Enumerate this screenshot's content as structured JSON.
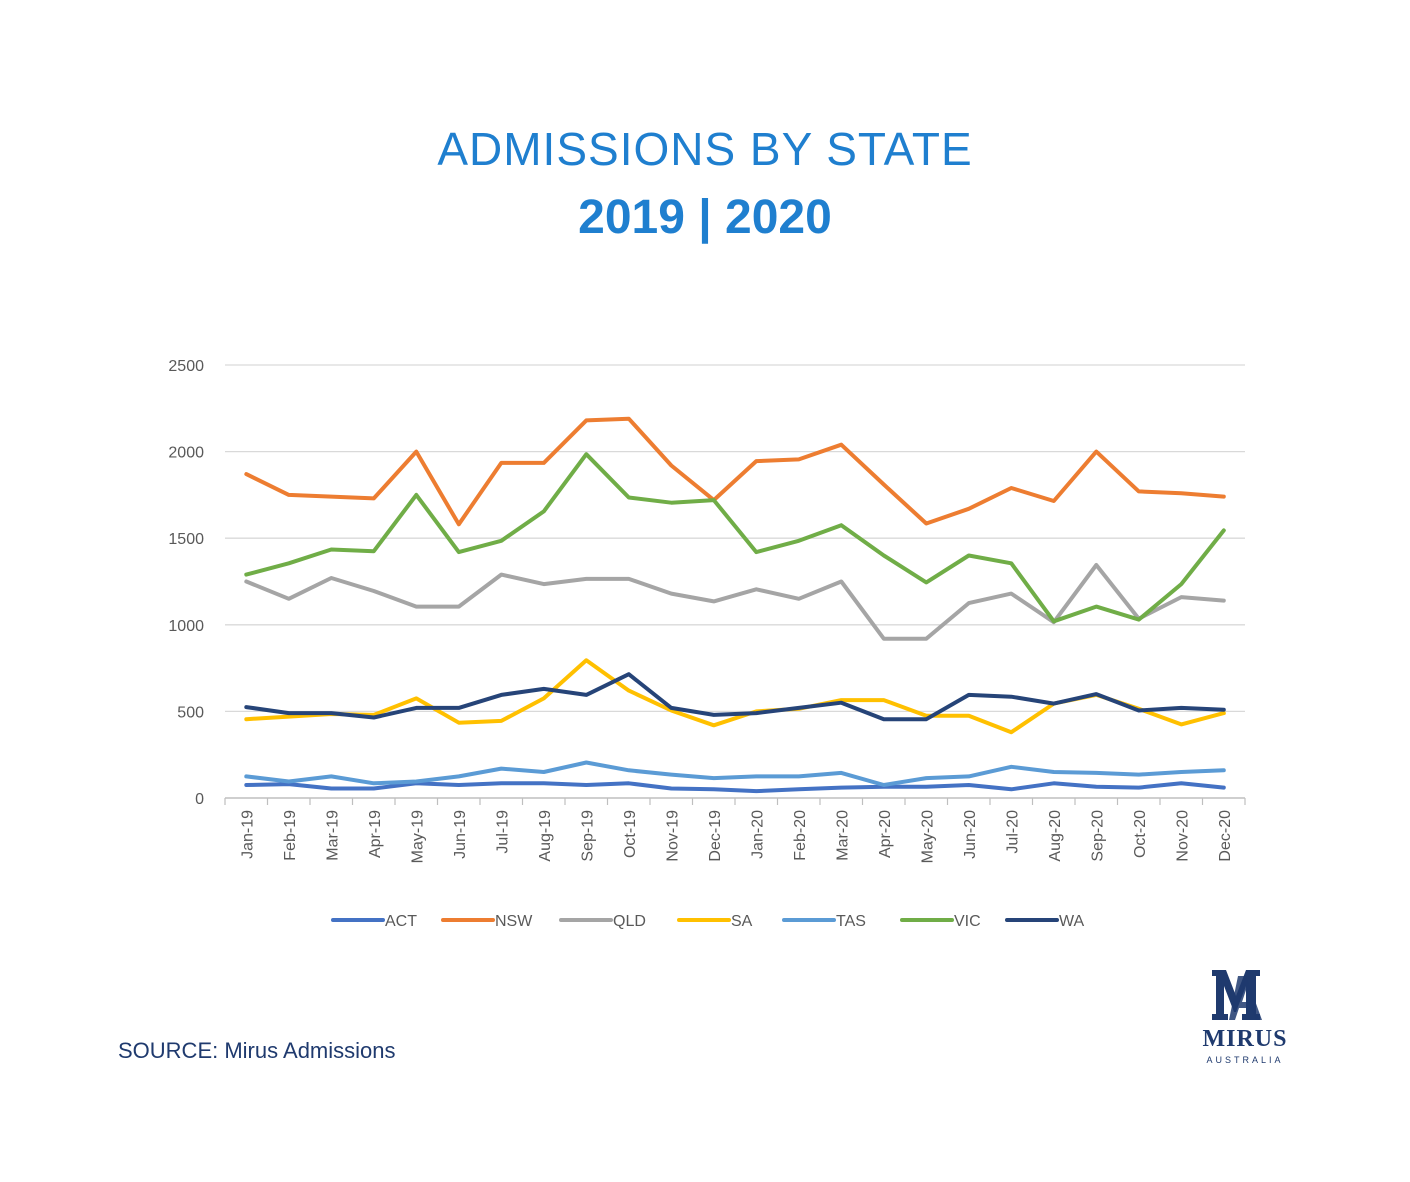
{
  "header": {
    "title": "ADMISSIONS BY STATE",
    "subtitle": "2019 | 2020"
  },
  "footer": {
    "source": "SOURCE: Mirus Admissions"
  },
  "logo": {
    "mark": "MA",
    "word": "MIRUS",
    "sub": "AUSTRALIA",
    "color": "#1f3a6e"
  },
  "chart_data": {
    "type": "line",
    "title": "",
    "xlabel": "",
    "ylabel": "",
    "ylim": [
      0,
      2500
    ],
    "yticks": [
      0,
      500,
      1000,
      1500,
      2000,
      2500
    ],
    "grid": true,
    "legend_position": "bottom",
    "categories": [
      "Jan-19",
      "Feb-19",
      "Mar-19",
      "Apr-19",
      "May-19",
      "Jun-19",
      "Jul-19",
      "Aug-19",
      "Sep-19",
      "Oct-19",
      "Nov-19",
      "Dec-19",
      "Jan-20",
      "Feb-20",
      "Mar-20",
      "Apr-20",
      "May-20",
      "Jun-20",
      "Jul-20",
      "Aug-20",
      "Sep-20",
      "Oct-20",
      "Nov-20",
      "Dec-20"
    ],
    "series": [
      {
        "name": "ACT",
        "color": "#4472c4",
        "values": [
          75,
          80,
          55,
          55,
          85,
          75,
          85,
          85,
          75,
          85,
          55,
          50,
          40,
          50,
          60,
          65,
          65,
          75,
          50,
          85,
          65,
          60,
          85,
          60
        ]
      },
      {
        "name": "NSW",
        "color": "#ed7d31",
        "values": [
          1870,
          1750,
          1740,
          1730,
          2000,
          1580,
          1935,
          1935,
          2180,
          2190,
          1920,
          1720,
          1945,
          1955,
          2040,
          1810,
          1585,
          1670,
          1790,
          1715,
          2000,
          1770,
          1760,
          1740
        ]
      },
      {
        "name": "QLD",
        "color": "#a5a5a5",
        "values": [
          1250,
          1150,
          1270,
          1195,
          1105,
          1105,
          1290,
          1235,
          1265,
          1265,
          1180,
          1135,
          1205,
          1150,
          1250,
          920,
          920,
          1125,
          1180,
          1015,
          1345,
          1035,
          1160,
          1140
        ]
      },
      {
        "name": "SA",
        "color": "#ffc000",
        "values": [
          455,
          470,
          485,
          480,
          575,
          435,
          445,
          575,
          795,
          620,
          505,
          420,
          500,
          515,
          565,
          565,
          475,
          475,
          380,
          545,
          595,
          515,
          425,
          490
        ]
      },
      {
        "name": "TAS",
        "color": "#5b9bd5",
        "values": [
          125,
          95,
          125,
          85,
          95,
          125,
          170,
          150,
          205,
          160,
          135,
          115,
          125,
          125,
          145,
          75,
          115,
          125,
          180,
          150,
          145,
          135,
          150,
          160
        ]
      },
      {
        "name": "VIC",
        "color": "#70ad47",
        "values": [
          1290,
          1355,
          1435,
          1425,
          1750,
          1420,
          1485,
          1655,
          1985,
          1735,
          1705,
          1720,
          1420,
          1485,
          1575,
          1400,
          1245,
          1400,
          1355,
          1020,
          1105,
          1030,
          1235,
          1545
        ]
      },
      {
        "name": "WA",
        "color": "#264478",
        "values": [
          525,
          490,
          490,
          465,
          520,
          520,
          595,
          630,
          595,
          715,
          520,
          480,
          490,
          520,
          550,
          455,
          455,
          595,
          585,
          545,
          600,
          505,
          520,
          510
        ]
      }
    ]
  }
}
